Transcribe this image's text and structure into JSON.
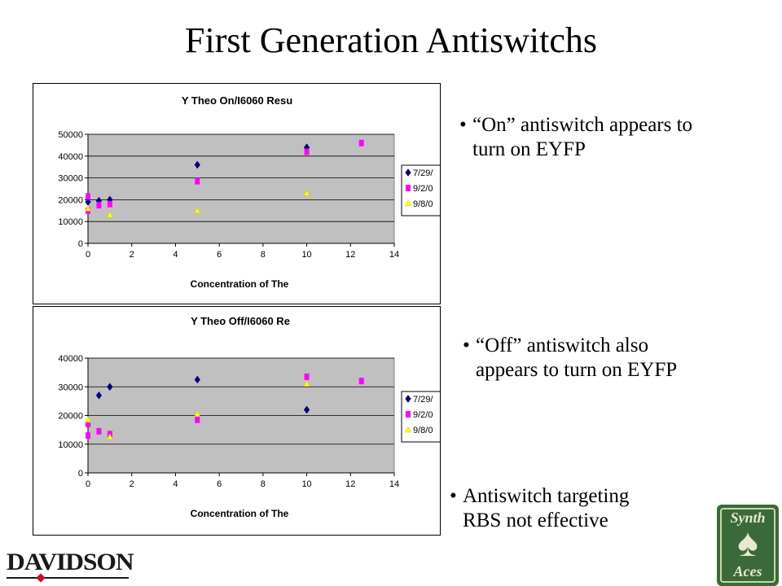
{
  "slide": {
    "title": "First Generation Antiswitchs"
  },
  "bullets": [
    {
      "dot": "•",
      "text": "“On” antiswitch appears to turn on EYFP",
      "lines": [
        "“On” antiswitch appears to",
        "turn on EYFP"
      ]
    },
    {
      "dot": "•",
      "text": "“Off” antiswitch also appears to turn on EYFP",
      "lines": [
        "“Off” antiswitch also",
        "appears to turn on EYFP"
      ]
    },
    {
      "dot": "•",
      "text": "Antiswitch targeting RBS not effective",
      "lines": [
        "Antiswitch targeting",
        "RBS not effective"
      ]
    }
  ],
  "logo": {
    "text": "DAVIDSON"
  },
  "badge": {
    "top": "Synth",
    "symbol": "♠",
    "bottom": "Aces"
  },
  "colors": {
    "plot_bg": "#c0c0c0",
    "series1": "#000080",
    "series2": "#ff00ff",
    "series3": "#ffff00"
  },
  "chart_data": [
    {
      "type": "scatter",
      "title": "Y Theo On/I6060 Resu",
      "xlabel": "Concentration of The",
      "ylabel": "",
      "xlim": [
        0,
        14
      ],
      "ylim": [
        0,
        50000
      ],
      "xticks": [
        "0",
        "2",
        "4",
        "6",
        "8",
        "10",
        "12",
        "14"
      ],
      "yticks": [
        "0",
        "10000",
        "20000",
        "30000",
        "40000",
        "50000"
      ],
      "grid": true,
      "legend": "right",
      "series": [
        {
          "name": "7/29/",
          "marker": "diamond",
          "color": "#000080",
          "points": [
            [
              0,
              19000
            ],
            [
              0.5,
              19500
            ],
            [
              1,
              20000
            ],
            [
              5,
              36000
            ],
            [
              10,
              44000
            ]
          ]
        },
        {
          "name": "9/2/0",
          "marker": "square",
          "color": "#ff00ff",
          "points": [
            [
              0,
              21500
            ],
            [
              0,
              15000
            ],
            [
              0.5,
              17500
            ],
            [
              1,
              18000
            ],
            [
              5,
              28500
            ],
            [
              10,
              42000
            ],
            [
              12.5,
              46000
            ]
          ]
        },
        {
          "name": "9/8/0",
          "marker": "triangle",
          "color": "#ffff00",
          "points": [
            [
              0,
              16000
            ],
            [
              1,
              13000
            ],
            [
              5,
              15000
            ],
            [
              10,
              23000
            ]
          ]
        }
      ]
    },
    {
      "type": "scatter",
      "title": "Y Theo Off/I6060 Re",
      "xlabel": "Concentration of The",
      "ylabel": "",
      "xlim": [
        0,
        14
      ],
      "ylim": [
        0,
        40000
      ],
      "xticks": [
        "0",
        "2",
        "4",
        "6",
        "8",
        "10",
        "12",
        "14"
      ],
      "yticks": [
        "0",
        "10000",
        "20000",
        "30000",
        "40000"
      ],
      "grid": true,
      "legend": "right",
      "series": [
        {
          "name": "7/29/",
          "marker": "diamond",
          "color": "#000080",
          "points": [
            [
              0,
              17000
            ],
            [
              0.5,
              27000
            ],
            [
              1,
              30000
            ],
            [
              5,
              32500
            ],
            [
              10,
              22000
            ]
          ]
        },
        {
          "name": "9/2/0",
          "marker": "square",
          "color": "#ff00ff",
          "points": [
            [
              0,
              17000
            ],
            [
              0,
              13000
            ],
            [
              0.5,
              14500
            ],
            [
              1,
              13500
            ],
            [
              5,
              18500
            ],
            [
              10,
              33500
            ],
            [
              12.5,
              32000
            ]
          ]
        },
        {
          "name": "9/8/0",
          "marker": "triangle",
          "color": "#ffff00",
          "points": [
            [
              0,
              18500
            ],
            [
              1,
              12500
            ],
            [
              5,
              20500
            ],
            [
              10,
              31000
            ]
          ]
        }
      ]
    }
  ]
}
